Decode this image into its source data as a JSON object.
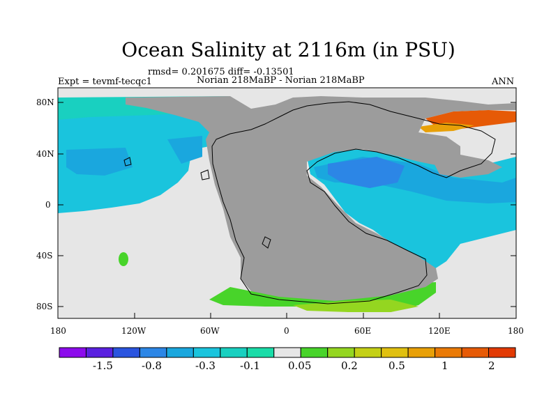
{
  "title": "Ocean Salinity at 2116m (in PSU)",
  "stats": "rmsd= 0.201675 diff= -0.13501",
  "left_label": "Expt = tevmf-tecqc1",
  "center_label": "Norian 218MaBP - Norian 218MaBP",
  "right_label": "ANN",
  "lat_ticks": [
    "80N",
    "40N",
    "0",
    "40S",
    "80S"
  ],
  "lon_ticks": [
    "180",
    "120W",
    "60W",
    "0",
    "60E",
    "120E",
    "180"
  ],
  "colorbar_labels": [
    "-1.5",
    "-0.8",
    "-0.3",
    "-0.1",
    "0.05",
    "0.2",
    "0.5",
    "1",
    "2"
  ],
  "colorbar_colors": [
    "#8c0bec",
    "#5a20e0",
    "#2a54df",
    "#2c86e6",
    "#1aa7de",
    "#1ac4dd",
    "#19d0c0",
    "#1adca8",
    "#e6e6e6",
    "#48d42a",
    "#94d620",
    "#c4d016",
    "#e0c010",
    "#e8a008",
    "#ea7a06",
    "#e65a06",
    "#e23a04"
  ],
  "colors": {
    "land": "#9c9c9c",
    "ocean_neutral": "#e6e6e6",
    "cyan": "#1ac4dd",
    "teal": "#19d0c0",
    "sky": "#1aa7de",
    "blue": "#2c86e6",
    "green": "#48d42a",
    "orange": "#e65a06"
  },
  "chart_data": {
    "type": "heatmap",
    "title": "Ocean Salinity at 2116m (in PSU)",
    "variable": "salinity difference",
    "units": "PSU",
    "lon_range": [
      -180,
      180
    ],
    "lat_range": [
      -90,
      90
    ],
    "color_levels": [
      -1.5,
      -0.8,
      -0.3,
      -0.1,
      0.05,
      0.2,
      0.5,
      1,
      2
    ]
  }
}
